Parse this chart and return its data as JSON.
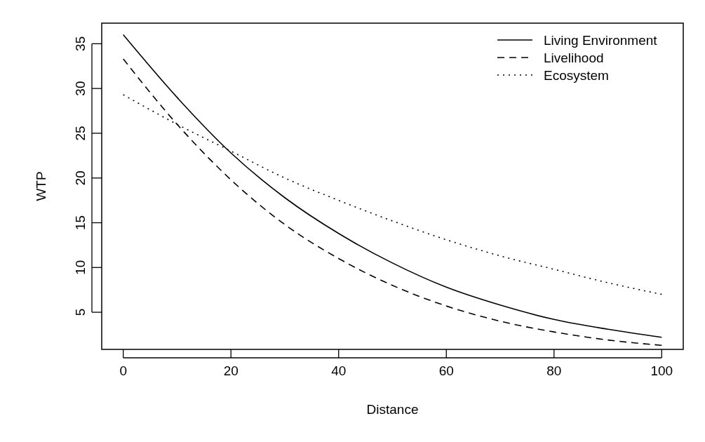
{
  "chart_data": {
    "type": "line",
    "xlabel": "Distance",
    "ylabel": "WTP",
    "x": [
      0,
      10,
      20,
      30,
      40,
      50,
      60,
      70,
      80,
      90,
      100
    ],
    "series": [
      {
        "name": "Living Environment",
        "color": "#000000",
        "line_style": "solid",
        "values": [
          36.0,
          29.0,
          22.8,
          17.8,
          13.8,
          10.5,
          7.8,
          5.8,
          4.2,
          3.1,
          2.2
        ]
      },
      {
        "name": "Livelihood",
        "color": "#000000",
        "line_style": "dashed",
        "values": [
          33.3,
          26.0,
          19.8,
          14.8,
          11.0,
          8.0,
          5.7,
          4.0,
          2.8,
          1.9,
          1.3
        ]
      },
      {
        "name": "Ecosystem",
        "color": "#000000",
        "line_style": "dotted",
        "values": [
          29.3,
          26.0,
          23.0,
          20.0,
          17.5,
          15.2,
          13.1,
          11.3,
          9.8,
          8.3,
          7.0
        ]
      }
    ],
    "xlim": [
      -4,
      104
    ],
    "ylim": [
      0.85,
      37.3
    ],
    "xticks": [
      0,
      20,
      40,
      60,
      80,
      100
    ],
    "yticks": [
      5,
      10,
      15,
      20,
      25,
      30,
      35
    ],
    "grid": false,
    "legend": "top right"
  }
}
